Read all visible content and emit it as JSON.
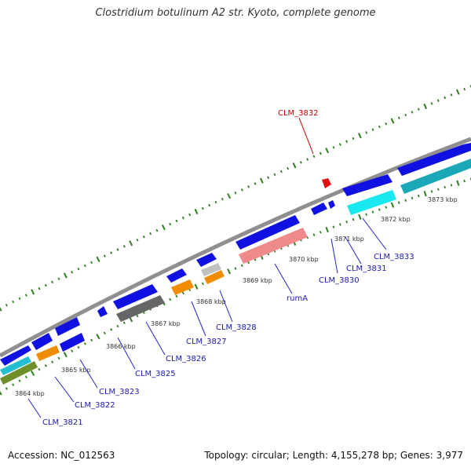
{
  "title": "Clostridium botulinum A2 str. Kyoto, complete genome",
  "footer": {
    "accession": "Accession: NC_012563",
    "summary": "Topology: circular; Length: 4,155,278 bp; Genes: 3,977"
  },
  "colors": {
    "backbone": "#8f8f8f",
    "tick": "#2e7d1e",
    "label_normal": "#1a1ab0",
    "label_highlight": "#cc0000",
    "leader": "#2424c8",
    "leader_highlight": "#cc0000",
    "kbp_text": "#333333"
  },
  "kbp_labels": [
    "3864 kbp",
    "3865 kbp",
    "3866 kbp",
    "3867 kbp",
    "3868 kbp",
    "3869 kbp",
    "3870 kbp",
    "3871 kbp",
    "3872 kbp",
    "3873 kbp"
  ],
  "genes": [
    {
      "name": "CLM_3821",
      "color": "#1a1ab0"
    },
    {
      "name": "CLM_3822",
      "color": "#1a1ab0"
    },
    {
      "name": "CLM_3823",
      "color": "#1a1ab0"
    },
    {
      "name": "CLM_3825",
      "color": "#1a1ab0"
    },
    {
      "name": "CLM_3826",
      "color": "#1a1ab0"
    },
    {
      "name": "CLM_3827",
      "color": "#1a1ab0"
    },
    {
      "name": "CLM_3828",
      "color": "#1a1ab0"
    },
    {
      "name": "rumA",
      "color": "#1a1ab0"
    },
    {
      "name": "CLM_3830",
      "color": "#1a1ab0"
    },
    {
      "name": "CLM_3831",
      "color": "#1a1ab0"
    },
    {
      "name": "CLM_3833",
      "color": "#1a1ab0"
    },
    {
      "name": "CLM_3832",
      "color": "#cc0000"
    }
  ]
}
